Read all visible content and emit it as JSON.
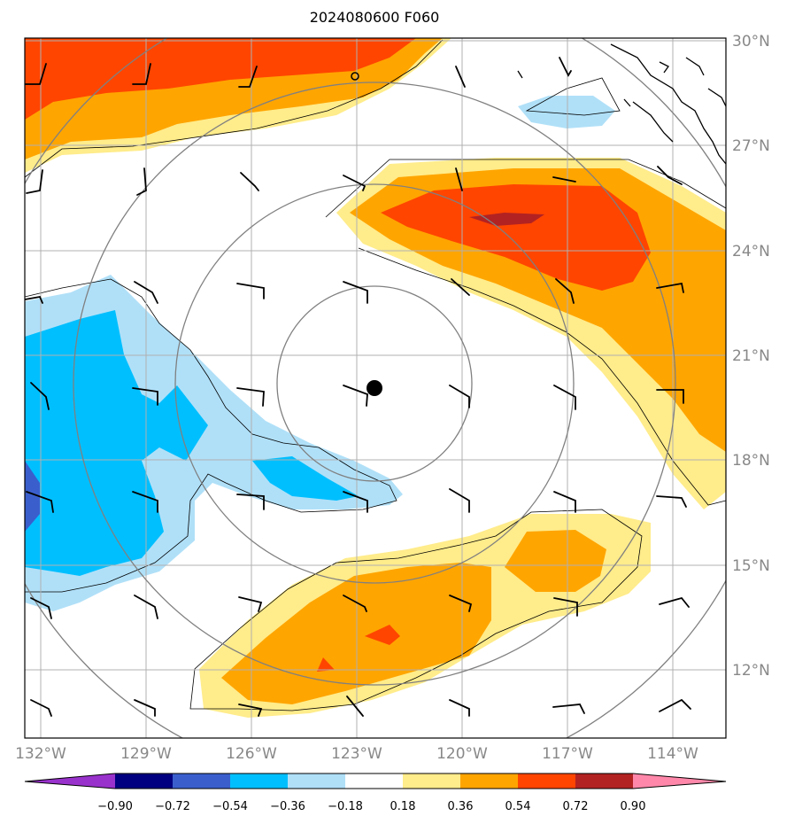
{
  "title": "2024080600 F060",
  "lat_labels": [
    "30°N",
    "27°N",
    "24°N",
    "21°N",
    "18°N",
    "15°N",
    "12°N"
  ],
  "lon_labels": [
    "132°W",
    "129°W",
    "126°W",
    "123°W",
    "120°W",
    "117°W",
    "114°W"
  ],
  "colorbar": {
    "ticks": [
      "−0.90",
      "−0.72",
      "−0.54",
      "−0.36",
      "−0.18",
      "0.18",
      "0.36",
      "0.54",
      "0.72",
      "0.90"
    ],
    "colors": [
      "#9932cc",
      "#000080",
      "#3a5fcd",
      "#00bfff",
      "#b0e0f8",
      "#ffffff",
      "#ffec8b",
      "#ffa500",
      "#ff4500",
      "#b22222",
      "#ff88aa"
    ]
  },
  "storm_center": {
    "lon": -122.5,
    "lat": 20.0
  }
}
